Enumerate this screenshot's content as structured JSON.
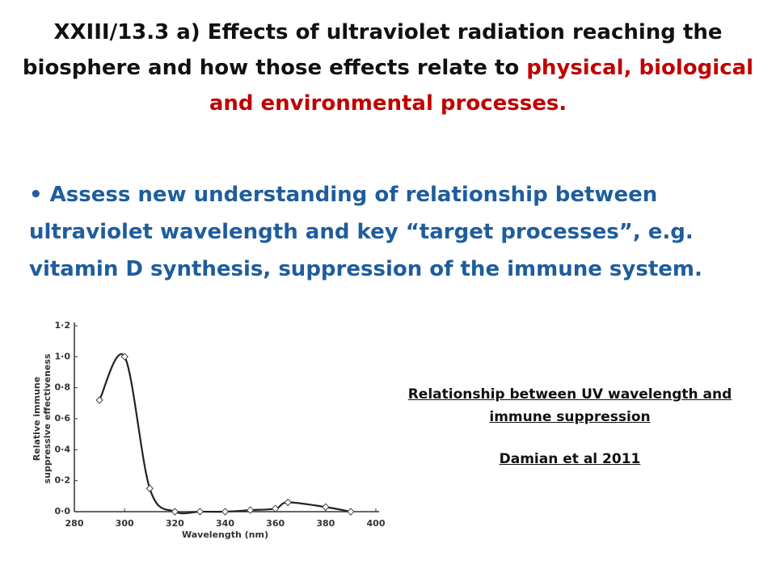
{
  "title": {
    "black": "XXIII/13.3 a) Effects of ultraviolet radiation reaching the biosphere and how those effects relate to",
    "red": "physical, biological and environmental processes."
  },
  "bullet": "Assess new understanding of relationship between ultraviolet wavelength and key “target processes”, e.g. vitamin D synthesis, suppression of the immune system.",
  "caption": {
    "title": "Relationship between UV wavelength and immune suppression",
    "source": "Damian et al 2011"
  },
  "chart_data": {
    "type": "line",
    "xlabel": "Wavelength (nm)",
    "ylabel": [
      "Relative immune",
      "suppressive effectiveness"
    ],
    "x": [
      290,
      300,
      310,
      320,
      330,
      340,
      350,
      360,
      365,
      380,
      390
    ],
    "series": [
      {
        "color": "#222222",
        "values": [
          0.72,
          1.0,
          0.15,
          0.0,
          0.0,
          0.0,
          0.01,
          0.02,
          0.06,
          0.03,
          0.0
        ]
      }
    ],
    "xlim": [
      280,
      400
    ],
    "xticks": [
      280,
      300,
      320,
      340,
      360,
      380,
      400
    ],
    "ylim": [
      0,
      1.2
    ],
    "yticks": [
      {
        "value": 0,
        "label": "0·0"
      },
      {
        "value": 0.2,
        "label": "0·2"
      },
      {
        "value": 0.4,
        "label": "0·4"
      },
      {
        "value": 0.6,
        "label": "0·6"
      },
      {
        "value": 0.8,
        "label": "0·8"
      },
      {
        "value": 1.0,
        "label": "1·0"
      },
      {
        "value": 1.2,
        "label": "1·2"
      }
    ],
    "grid": false
  }
}
